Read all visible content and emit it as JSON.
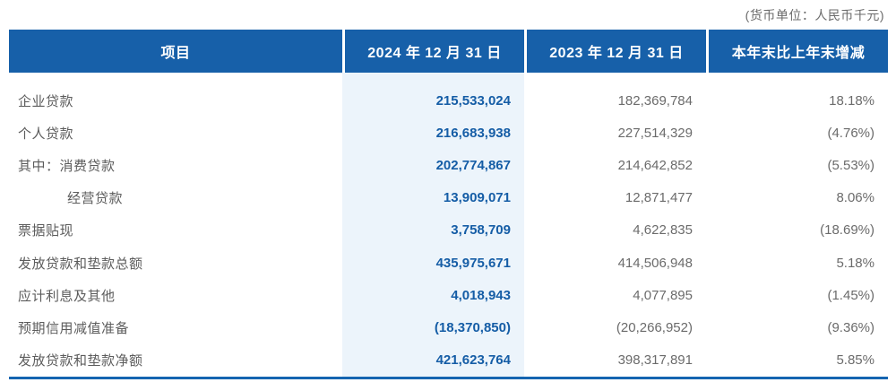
{
  "meta": {
    "currency_note": "(货币单位：人民币千元)"
  },
  "colors": {
    "header_bg": "#1760a9",
    "highlight_bg": "#ecf4fb",
    "value_2024": "#155da6",
    "label_gray": "#5c5c5c",
    "value_gray": "#6b6b6b",
    "bottom_line": "#1565b0"
  },
  "table": {
    "headers": {
      "item": "项目",
      "col2024": "2024 年 12 月 31 日",
      "col2023": "2023 年 12 月 31 日",
      "change": "本年末比上年末增减"
    },
    "rows": [
      {
        "label": "企业贷款",
        "indent": 0,
        "v2024": "215,533,024",
        "v2023": "182,369,784",
        "change": "18.18%"
      },
      {
        "label": "个人贷款",
        "indent": 0,
        "v2024": "216,683,938",
        "v2023": "227,514,329",
        "change": "(4.76%)"
      },
      {
        "label": "其中：消费贷款",
        "indent": 0,
        "v2024": "202,774,867",
        "v2023": "214,642,852",
        "change": "(5.53%)"
      },
      {
        "label": "经营贷款",
        "indent": 1,
        "v2024": "13,909,071",
        "v2023": "12,871,477",
        "change": "8.06%"
      },
      {
        "label": "票据贴现",
        "indent": 0,
        "v2024": "3,758,709",
        "v2023": "4,622,835",
        "change": "(18.69%)"
      },
      {
        "label": "发放贷款和垫款总额",
        "indent": 0,
        "v2024": "435,975,671",
        "v2023": "414,506,948",
        "change": "5.18%"
      },
      {
        "label": "应计利息及其他",
        "indent": 0,
        "v2024": "4,018,943",
        "v2023": "4,077,895",
        "change": "(1.45%)"
      },
      {
        "label": "预期信用减值准备",
        "indent": 0,
        "v2024": "(18,370,850)",
        "v2023": "(20,266,952)",
        "change": "(9.36%)"
      },
      {
        "label": "发放贷款和垫款净额",
        "indent": 0,
        "v2024": "421,623,764",
        "v2023": "398,317,891",
        "change": "5.85%"
      }
    ]
  }
}
